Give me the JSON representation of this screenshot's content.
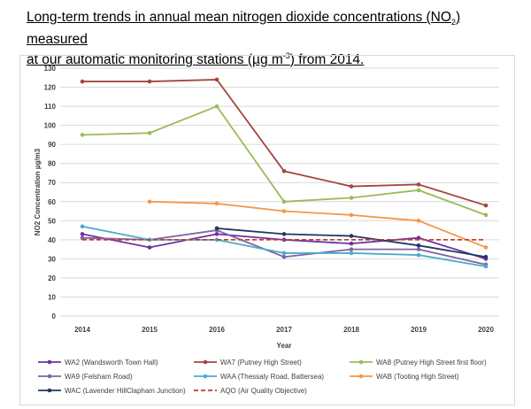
{
  "heading": {
    "line1_pre": "Long-term trends in annual mean nitrogen dioxide concentrations (NO",
    "line1_sub": "2",
    "line1_post": ") measured",
    "line2_pre": "at our automatic monitoring stations (µg m",
    "line2_sup": "-3",
    "line2_post": ") from 2014."
  },
  "chart_data": {
    "type": "line",
    "xlabel": "Year",
    "ylabel": "NO2 Concentration µg/m3",
    "ylim": [
      0,
      130
    ],
    "yticks": [
      0,
      10,
      20,
      30,
      40,
      50,
      60,
      70,
      80,
      90,
      100,
      110,
      120,
      130
    ],
    "categories": [
      "2014",
      "2015",
      "2016",
      "2017",
      "2018",
      "2019",
      "2020"
    ],
    "grid": "horizontal",
    "legend_position": "bottom",
    "series": [
      {
        "name": "WA2 (Wandsworth Town Hall)",
        "color": "#7030a0",
        "dashed": false,
        "values": [
          43,
          36,
          43,
          40,
          38,
          41,
          30
        ]
      },
      {
        "name": "WA7 (Putney High Street)",
        "color": "#a5443f",
        "dashed": false,
        "values": [
          123,
          123,
          124,
          76,
          68,
          69,
          58
        ]
      },
      {
        "name": "WA8  (Putney High Street first floor)",
        "color": "#9bbb59",
        "dashed": false,
        "values": [
          95,
          96,
          110,
          60,
          62,
          66,
          53
        ]
      },
      {
        "name": "WA9 (Felsham Road)",
        "color": "#8064a2",
        "dashed": false,
        "values": [
          41,
          40,
          45,
          31,
          35,
          35,
          27
        ]
      },
      {
        "name": "WAA  (Thessaly Road, Battersea)",
        "color": "#4bacc6",
        "dashed": false,
        "values": [
          47,
          40,
          40,
          33,
          33,
          32,
          26
        ]
      },
      {
        "name": "WAB (Tooting High Street)",
        "color": "#f79646",
        "dashed": false,
        "values": [
          null,
          60,
          59,
          55,
          53,
          50,
          36
        ]
      },
      {
        "name": "WAC  (Lavender HillClapham Junction)",
        "color": "#1f3864",
        "dashed": false,
        "values": [
          null,
          null,
          46,
          43,
          42,
          37,
          31
        ]
      },
      {
        "name": "AQO (Air Quality Objective)",
        "color": "#c0392b",
        "dashed": true,
        "values": [
          40,
          40,
          40,
          40,
          40,
          40,
          40
        ]
      }
    ]
  }
}
